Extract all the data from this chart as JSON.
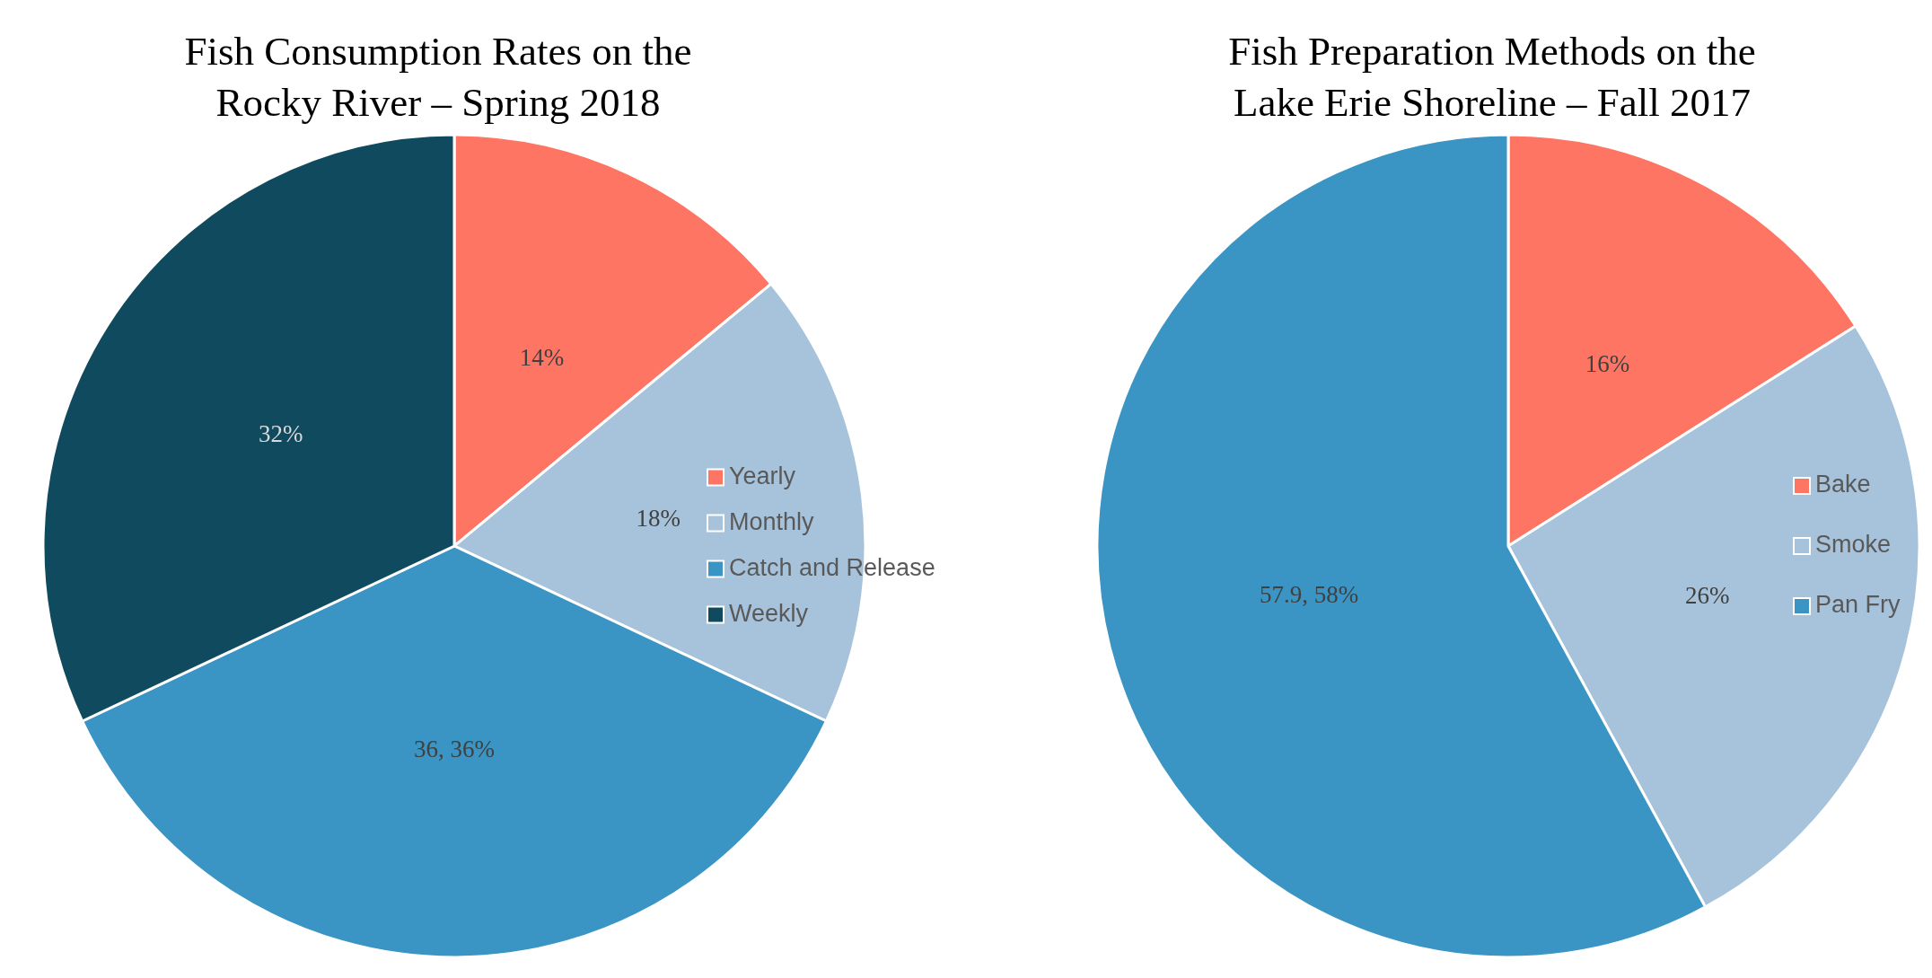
{
  "chart_data": [
    {
      "type": "pie",
      "title": "Fish Consumption Rates on the\nRocky River – Spring 2018",
      "categories": [
        "Yearly",
        "Monthly",
        "Catch and Release",
        "Weekly"
      ],
      "values": [
        14,
        18,
        36,
        32
      ],
      "colors": [
        "#ff7563",
        "#a6c3db",
        "#3a94c4",
        "#0f4a5f"
      ],
      "value_labels": [
        "14%",
        "18%",
        "36, 36%",
        "32%"
      ],
      "legend": "right"
    },
    {
      "type": "pie",
      "title": "Fish Preparation Methods on the\nLake Erie Shoreline – Fall 2017",
      "categories": [
        "Bake",
        "Smoke",
        "Pan Fry"
      ],
      "values": [
        16,
        26,
        57.9
      ],
      "colors": [
        "#ff7563",
        "#a6c3db",
        "#3a94c4"
      ],
      "value_labels": [
        "16%",
        "26%",
        "57.9, 58%"
      ],
      "legend": "right"
    }
  ]
}
